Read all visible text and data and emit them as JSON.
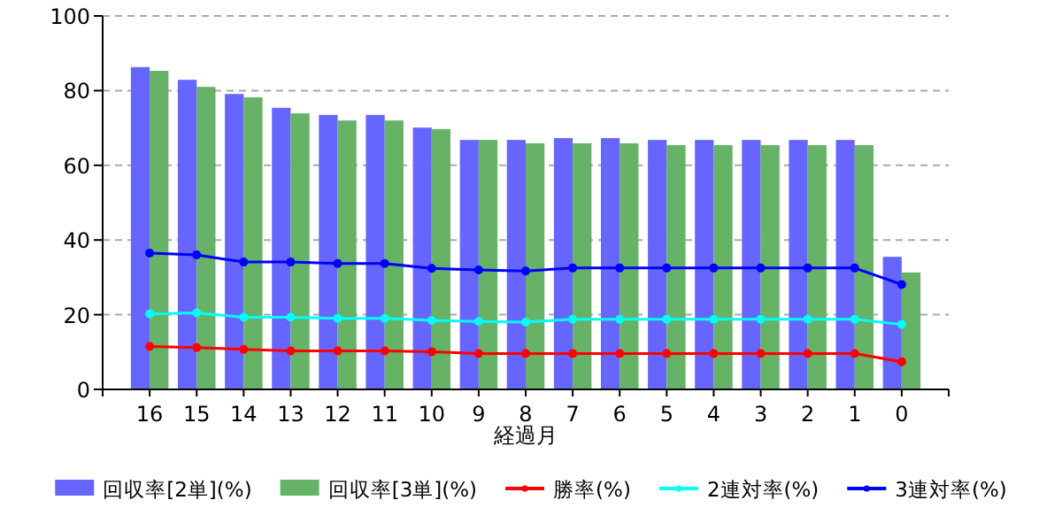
{
  "chart_data": {
    "type": "bar",
    "xlabel": "経過月",
    "categories": [
      "16",
      "15",
      "14",
      "13",
      "12",
      "11",
      "10",
      "9",
      "8",
      "7",
      "6",
      "5",
      "4",
      "3",
      "2",
      "1",
      "0"
    ],
    "ylim": [
      0,
      100
    ],
    "yticks": [
      0,
      20,
      40,
      60,
      80,
      100
    ],
    "grid": "y",
    "legend": "bottom",
    "marker": "circle",
    "series": [
      {
        "name": "回収率[2単](%)",
        "color": "#6666ff",
        "values": [
          86.3,
          82.9,
          79.1,
          75.4,
          73.5,
          73.5,
          70.1,
          66.8,
          66.8,
          67.3,
          67.3,
          66.8,
          66.8,
          66.8,
          66.8,
          66.8,
          35.5
        ]
      },
      {
        "name": "回収率[3単](%)",
        "color": "#66b266",
        "values": [
          85.3,
          81,
          78.2,
          73.9,
          72,
          72,
          69.7,
          66.8,
          65.9,
          65.9,
          65.9,
          65.4,
          65.4,
          65.4,
          65.4,
          65.4,
          31.3
        ]
      },
      {
        "name": "勝率(%)",
        "color": "#ff0000",
        "type": "line",
        "values": [
          11.5,
          11.2,
          10.7,
          10.3,
          10.3,
          10.3,
          10.1,
          9.6,
          9.6,
          9.6,
          9.6,
          9.6,
          9.6,
          9.6,
          9.6,
          9.6,
          7.4
        ]
      },
      {
        "name": "2連対率(%)",
        "color": "#00ffff",
        "type": "line",
        "values": [
          20.2,
          20.5,
          19.3,
          19.3,
          19,
          19,
          18.5,
          18.2,
          18,
          18.8,
          18.8,
          18.8,
          18.8,
          18.8,
          18.8,
          18.8,
          17.4
        ]
      },
      {
        "name": "3連対率(%)",
        "color": "#0000ff",
        "type": "line",
        "values": [
          36.5,
          36,
          34.1,
          34.1,
          33.7,
          33.7,
          32.4,
          32,
          31.7,
          32.5,
          32.5,
          32.5,
          32.5,
          32.5,
          32.5,
          32.5,
          28.1
        ]
      }
    ]
  }
}
